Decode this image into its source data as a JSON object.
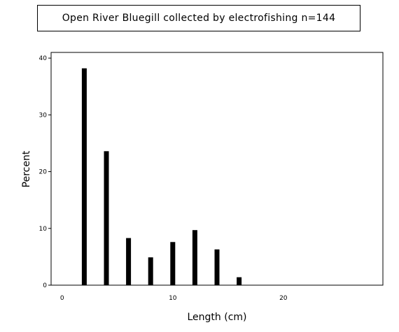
{
  "chart_data": {
    "type": "bar",
    "title": "Open River Bluegill collected by electrofishing n=144",
    "xlabel": "Length (cm)",
    "ylabel": "Percent",
    "x": [
      2,
      4,
      6,
      8,
      10,
      12,
      14,
      16
    ],
    "values": [
      38.2,
      23.6,
      8.3,
      4.9,
      7.6,
      9.7,
      6.3,
      1.4
    ],
    "xlim": [
      -1,
      29
    ],
    "ylim": [
      0,
      41
    ],
    "xticks": [
      0,
      10,
      20
    ],
    "yticks": [
      0,
      10,
      20,
      30,
      40
    ],
    "grid": false,
    "bar_color": "#000000"
  }
}
